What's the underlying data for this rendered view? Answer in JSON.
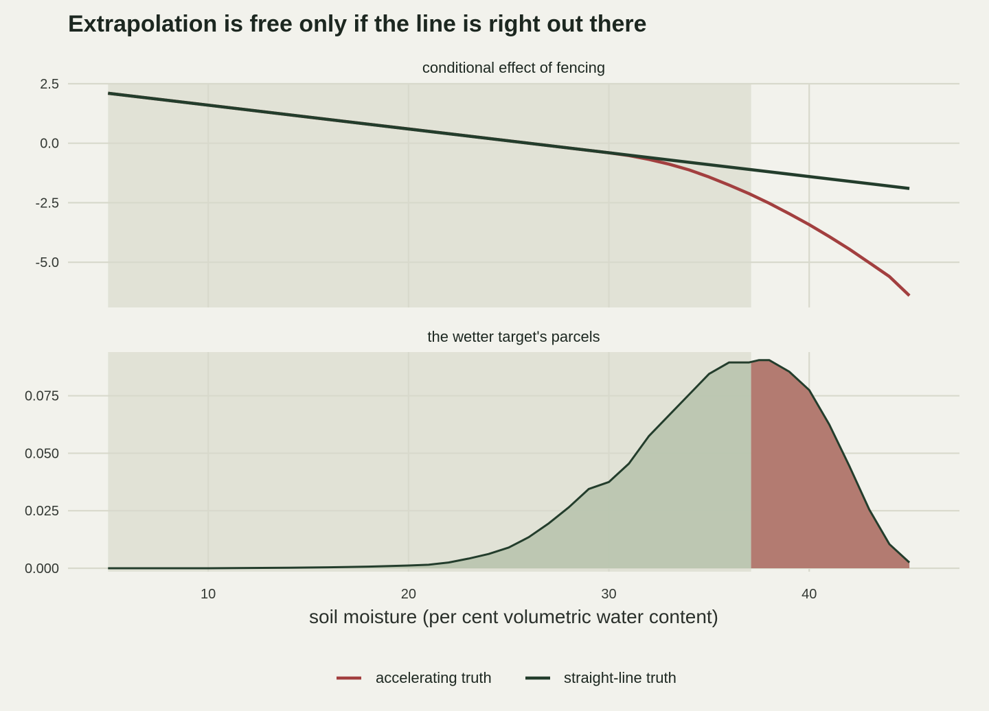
{
  "title": "Extrapolation is free only if the line is right out there",
  "xlabel": "soil moisture (per cent volumetric water content)",
  "colors": {
    "background": "#f2f2ec",
    "observed_band": "#e1e2d6",
    "accelerating": "#a23f3f",
    "straight": "#233d2c",
    "density_inside": "#b9c4ae",
    "density_outside": "#b37b71",
    "grid": "#d8d9cc"
  },
  "legend": {
    "position": "bottom",
    "items": [
      {
        "label": "accelerating truth",
        "color": "#a23f3f"
      },
      {
        "label": "straight-line truth",
        "color": "#233d2c"
      }
    ]
  },
  "chart_data": [
    {
      "type": "line",
      "panel": "top",
      "strip_title": "conditional effect of fencing",
      "xlim": [
        3,
        47.5
      ],
      "ylim": [
        -6.9,
        2.5
      ],
      "x_ticks": [
        10,
        20,
        30,
        40
      ],
      "y_ticks": [
        2.5,
        0.0,
        -2.5,
        -5.0
      ],
      "y_tick_labels": [
        "2.5",
        "0.0",
        "-2.5",
        "-5.0"
      ],
      "observed_range": [
        5,
        37.1
      ],
      "series": [
        {
          "name": "accelerating truth",
          "color": "#a23f3f",
          "x": [
            5,
            10,
            15,
            20,
            25,
            30,
            31,
            32,
            33,
            34,
            35,
            36,
            37,
            38,
            39,
            40,
            41,
            42,
            43,
            44,
            45
          ],
          "y": [
            2.1,
            1.6,
            1.1,
            0.6,
            0.1,
            -0.4,
            -0.52,
            -0.68,
            -0.88,
            -1.12,
            -1.42,
            -1.76,
            -2.12,
            -2.52,
            -2.96,
            -3.42,
            -3.92,
            -4.45,
            -5.02,
            -5.6,
            -6.4
          ]
        },
        {
          "name": "straight-line truth",
          "color": "#233d2c",
          "x": [
            5,
            45
          ],
          "y": [
            2.1,
            -1.9
          ]
        }
      ]
    },
    {
      "type": "area",
      "panel": "bottom",
      "strip_title": "the wetter target's parcels",
      "xlim": [
        3,
        47.5
      ],
      "ylim": [
        -0.0015,
        0.094
      ],
      "x_ticks": [
        10,
        20,
        30,
        40
      ],
      "x_tick_labels": [
        "10",
        "20",
        "30",
        "40"
      ],
      "y_ticks": [
        0.0,
        0.025,
        0.05,
        0.075
      ],
      "y_tick_labels": [
        "0.000",
        "0.025",
        "0.050",
        "0.075"
      ],
      "observed_range": [
        5,
        37.1
      ],
      "cutoff": 37.1,
      "x": [
        5,
        10,
        14,
        16,
        18,
        20,
        21,
        22,
        23,
        24,
        25,
        26,
        27,
        28,
        29,
        30,
        31,
        32,
        33,
        34,
        35,
        36,
        37,
        37.5,
        38,
        39,
        40,
        41,
        42,
        43,
        44,
        45
      ],
      "y": [
        0.0,
        0.0,
        0.0002,
        0.0004,
        0.0007,
        0.0012,
        0.0015,
        0.0025,
        0.0042,
        0.0062,
        0.009,
        0.0135,
        0.0195,
        0.0265,
        0.0345,
        0.0375,
        0.0455,
        0.0575,
        0.0665,
        0.0755,
        0.0845,
        0.0895,
        0.0895,
        0.0905,
        0.0905,
        0.0855,
        0.0775,
        0.0625,
        0.0445,
        0.0255,
        0.0105,
        0.0025
      ]
    }
  ]
}
